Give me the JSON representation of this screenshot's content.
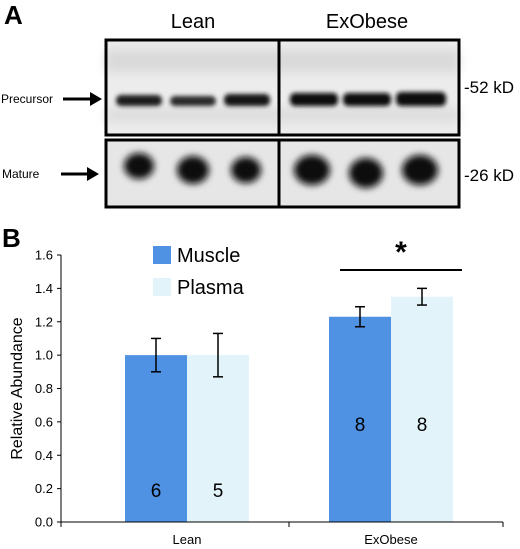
{
  "panel_a": {
    "letter": "A",
    "group_labels": [
      "Lean",
      "ExObese"
    ],
    "band_labels": {
      "precursor": "Precursor",
      "mature": "Mature"
    },
    "weights": {
      "precursor": "-52 kD",
      "mature": "-26 kD"
    }
  },
  "panel_b": {
    "letter": "B",
    "significance_marker": "*"
  },
  "colors": {
    "muscle": "#4f91e3",
    "plasma": "#e2f4f9",
    "error_bar": "#000000"
  },
  "chart_data": {
    "type": "bar",
    "categories": [
      "Lean",
      "ExObese"
    ],
    "series": [
      {
        "name": "Muscle",
        "values": [
          1.0,
          1.23
        ],
        "errors": [
          0.1,
          0.06
        ],
        "n": [
          "6",
          "8"
        ]
      },
      {
        "name": "Plasma",
        "values": [
          1.0,
          1.35
        ],
        "errors": [
          0.13,
          0.05
        ],
        "n": [
          "5",
          "8"
        ]
      }
    ],
    "ylabel": "Relative Abundance",
    "ylim": [
      0,
      1.6
    ],
    "yticks": [
      "0.0",
      "0.2",
      "0.4",
      "0.6",
      "0.8",
      "1.0",
      "1.2",
      "1.4",
      "1.6"
    ],
    "grid": false,
    "legend_position": "top-left"
  }
}
